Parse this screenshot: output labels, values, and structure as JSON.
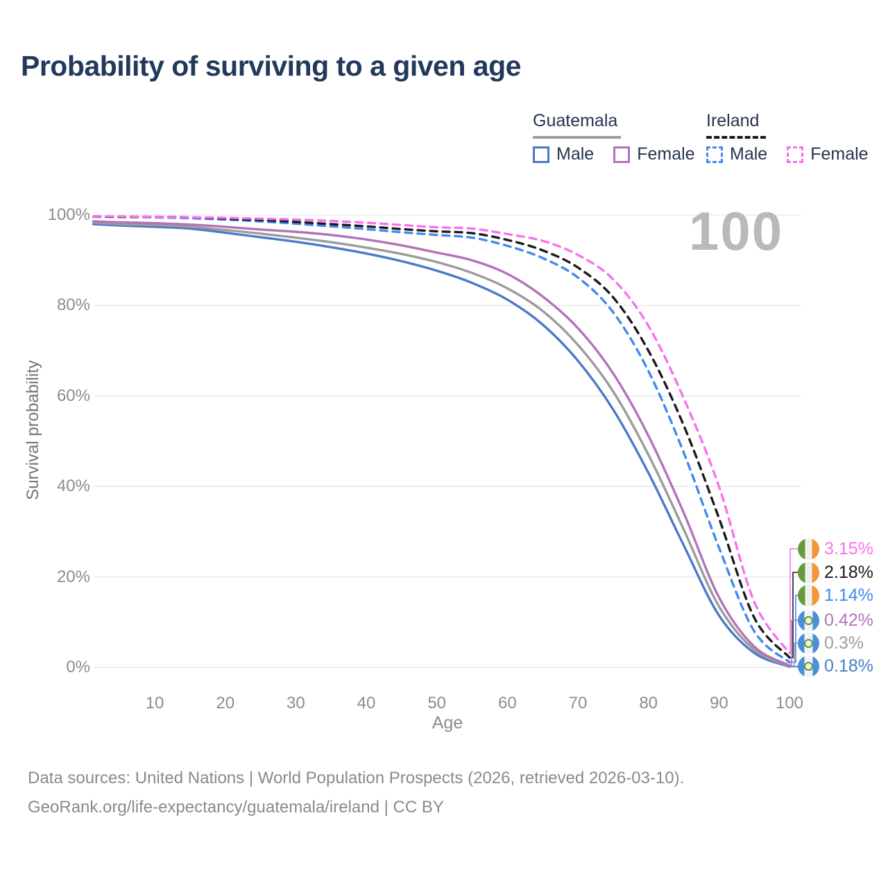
{
  "header": {
    "title": "Probability of surviving to a given age"
  },
  "watermark": "100",
  "legend": {
    "groups": [
      {
        "name": "Guatemala",
        "underline_style": "solid",
        "underline_color": "#9e9e9e",
        "items": [
          {
            "label": "Male",
            "color": "#4a79cc",
            "style": "solid"
          },
          {
            "label": "Female",
            "color": "#b173b8",
            "style": "solid"
          }
        ]
      },
      {
        "name": "Ireland",
        "underline_style": "dashed",
        "underline_color": "#1a1a1a",
        "items": [
          {
            "label": "Male",
            "color": "#4189f0",
            "style": "dashed"
          },
          {
            "label": "Female",
            "color": "#fa70ee",
            "style": "dashed"
          }
        ]
      }
    ]
  },
  "chart_data": {
    "type": "line",
    "title": "Probability of surviving to a given age",
    "xlabel": "Age",
    "ylabel": "Survival probability",
    "xlim": [
      0,
      110
    ],
    "ylim": [
      0,
      100
    ],
    "x_ticks": [
      10,
      20,
      30,
      40,
      50,
      60,
      70,
      80,
      90,
      100
    ],
    "y_ticks": [
      "0%",
      "20%",
      "40%",
      "60%",
      "80%",
      "100%"
    ],
    "y_tick_values": [
      0,
      20,
      40,
      60,
      80,
      100
    ],
    "grid": "horizontal",
    "legend_position": "top-right",
    "ages": [
      1.3,
      5,
      10,
      15,
      20,
      25,
      30,
      35,
      40,
      45,
      50,
      55,
      60,
      65,
      70,
      75,
      80,
      85,
      90,
      95,
      100
    ],
    "series": [
      {
        "name": "Guatemala Male",
        "country": "Guatemala",
        "sex": "Male",
        "color": "#4a79cc",
        "dash": "solid",
        "end_label": "0.18%",
        "values": [
          98.0,
          97.7,
          97.4,
          97.0,
          96.1,
          95.1,
          94.1,
          92.9,
          91.5,
          89.8,
          87.7,
          85.0,
          81.3,
          75.8,
          67.8,
          57.0,
          43.0,
          27.0,
          11.5,
          3.2,
          0.18
        ]
      },
      {
        "name": "Guatemala Both sexes",
        "country": "Guatemala",
        "sex": "Both",
        "color": "#9b9b9b",
        "dash": "solid",
        "end_label": "0.3%",
        "values": [
          98.3,
          98.0,
          97.8,
          97.4,
          96.7,
          95.9,
          95.0,
          94.0,
          92.8,
          91.4,
          89.6,
          87.2,
          83.8,
          78.8,
          71.3,
          61.0,
          47.0,
          30.5,
          13.5,
          3.9,
          0.3
        ]
      },
      {
        "name": "Guatemala Female",
        "country": "Guatemala",
        "sex": "Female",
        "color": "#b173b8",
        "dash": "solid",
        "end_label": "0.42%",
        "values": [
          98.6,
          98.4,
          98.2,
          97.9,
          97.4,
          96.8,
          96.3,
          95.6,
          94.6,
          93.3,
          91.7,
          90.0,
          87.0,
          82.0,
          75.0,
          65.0,
          51.2,
          34.2,
          15.5,
          4.6,
          0.42
        ]
      },
      {
        "name": "Ireland Male",
        "country": "Ireland",
        "sex": "Male",
        "color": "#4189f0",
        "dash": "dashed",
        "end_label": "1.14%",
        "values": [
          99.6,
          99.6,
          99.5,
          99.3,
          99.0,
          98.6,
          98.1,
          97.5,
          96.9,
          96.2,
          95.6,
          95.0,
          93.2,
          90.5,
          86.2,
          78.5,
          65.5,
          47.5,
          26.5,
          8.0,
          1.14
        ]
      },
      {
        "name": "Ireland Both sexes",
        "country": "Ireland",
        "sex": "Both",
        "color": "#1a1a1a",
        "dash": "dashed",
        "end_label": "2.18%",
        "values": [
          99.7,
          99.6,
          99.6,
          99.5,
          99.2,
          98.9,
          98.5,
          98.0,
          97.5,
          96.9,
          96.4,
          96.0,
          94.5,
          92.2,
          88.4,
          81.8,
          70.0,
          53.5,
          33.0,
          11.0,
          2.18
        ]
      },
      {
        "name": "Ireland Female",
        "country": "Ireland",
        "sex": "Female",
        "color": "#fa70ee",
        "dash": "dashed",
        "end_label": "3.15%",
        "values": [
          99.7,
          99.7,
          99.6,
          99.5,
          99.4,
          99.2,
          99.0,
          98.7,
          98.3,
          97.8,
          97.3,
          97.0,
          95.8,
          94.3,
          91.2,
          85.8,
          75.5,
          59.5,
          40.0,
          14.5,
          3.15
        ]
      }
    ],
    "end_labels": [
      {
        "value": "3.15%",
        "flag": "ireland",
        "color": "#fa70ee",
        "end_value": 3.15
      },
      {
        "value": "2.18%",
        "flag": "ireland",
        "color": "#1a1a1a",
        "end_value": 2.18
      },
      {
        "value": "1.14%",
        "flag": "ireland",
        "color": "#4189f0",
        "end_value": 1.14
      },
      {
        "value": "0.42%",
        "flag": "guatemala",
        "color": "#b473bd",
        "end_value": 0.42
      },
      {
        "value": "0.3%",
        "flag": "guatemala",
        "color": "#9e9e9e",
        "end_value": 0.3
      },
      {
        "value": "0.18%",
        "flag": "guatemala",
        "color": "#4a7ccd",
        "end_value": 0.18
      }
    ]
  },
  "footer": {
    "line1": "Data sources: United Nations | World Population Prospects (2026, retrieved 2026-03-10).",
    "line2": "GeoRank.org/life-expectancy/guatemala/ireland | CC BY"
  }
}
